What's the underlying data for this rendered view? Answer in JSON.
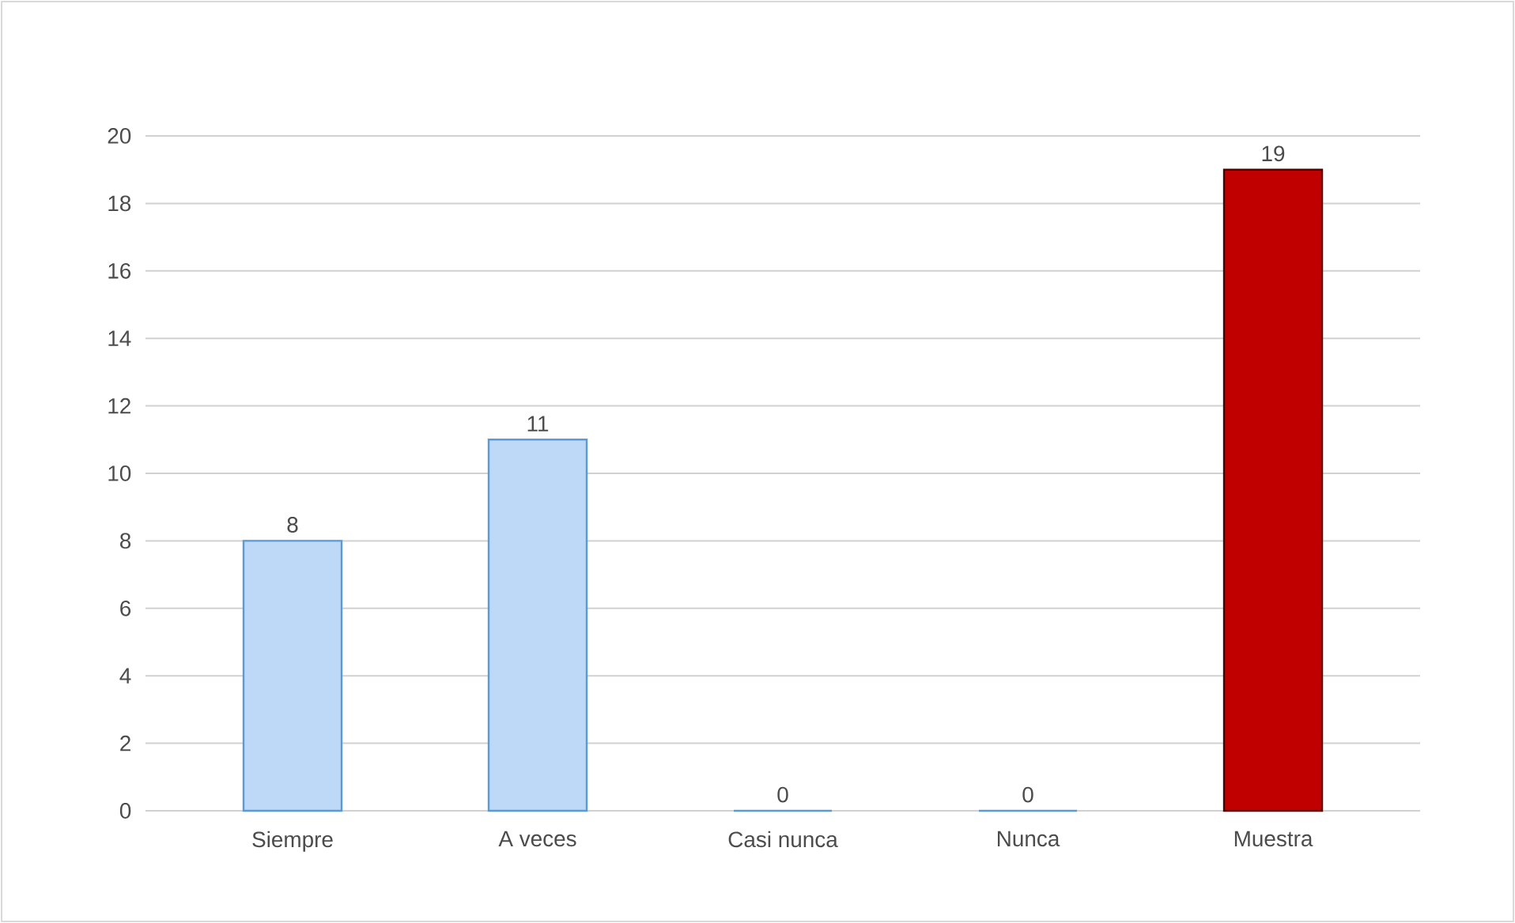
{
  "chart_data": {
    "type": "bar",
    "categories": [
      "Siempre",
      "A veces",
      "Casi nunca",
      "Nunca",
      "Muestra"
    ],
    "values": [
      8,
      11,
      0,
      0,
      19
    ],
    "colors": [
      "#bdd9f7",
      "#bdd9f7",
      "#bdd9f7",
      "#bdd9f7",
      "#c00000"
    ],
    "ylim": [
      0,
      20
    ],
    "yticks": [
      0,
      2,
      4,
      6,
      8,
      10,
      12,
      14,
      16,
      18,
      20
    ],
    "grid": "y",
    "data_labels": true
  }
}
